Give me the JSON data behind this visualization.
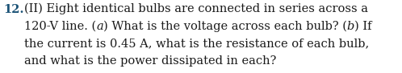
{
  "number": "12.",
  "number_color": "#1a5276",
  "number_fontsize": 10.5,
  "number_bold": true,
  "line1": "(II) Eight identical bulbs are connected in series across a",
  "line2_parts": [
    [
      "120-V line. (",
      false
    ],
    [
      "a",
      true
    ],
    [
      ") What is the voltage across each bulb? (",
      false
    ],
    [
      "b",
      true
    ],
    [
      ") If",
      false
    ]
  ],
  "line3": "the current is 0.45 A, what is the resistance of each bulb,",
  "line4": "and what is the power dissipated in each?",
  "text_color": "#1a1a1a",
  "text_fontsize": 10.5,
  "bg_color": "#ffffff",
  "fig_width": 4.98,
  "fig_height": 0.91,
  "dpi": 100
}
